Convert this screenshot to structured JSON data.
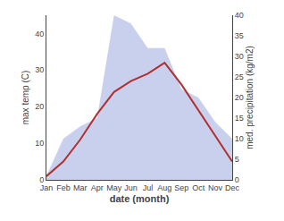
{
  "chart_data": {
    "type": "line",
    "xlabel": "date (month)",
    "ylabel": "max temp (C)",
    "y2label": "med. precipitation (kg/m2)",
    "categories": [
      "Jan",
      "Feb",
      "Mar",
      "Apr",
      "May",
      "Jun",
      "Jul",
      "Aug",
      "Sep",
      "Oct",
      "Nov",
      "Dec"
    ],
    "series": [
      {
        "type": "area",
        "color": "#c8d0ee",
        "axis": "y2",
        "values": [
          1,
          10,
          13,
          15,
          40,
          38,
          32,
          32,
          22,
          20,
          14,
          10
        ]
      },
      {
        "type": "line",
        "color": "#b03030",
        "values": [
          1,
          5,
          11,
          18,
          24,
          27,
          29,
          32,
          26,
          19,
          12,
          5
        ]
      }
    ],
    "ylim": [
      0,
      45
    ],
    "yticks": [
      0,
      10,
      20,
      30,
      40
    ],
    "y2lim": [
      0,
      40
    ],
    "y2ticks": [
      0,
      5,
      10,
      15,
      20,
      25,
      30,
      35,
      40
    ],
    "grid": false
  }
}
